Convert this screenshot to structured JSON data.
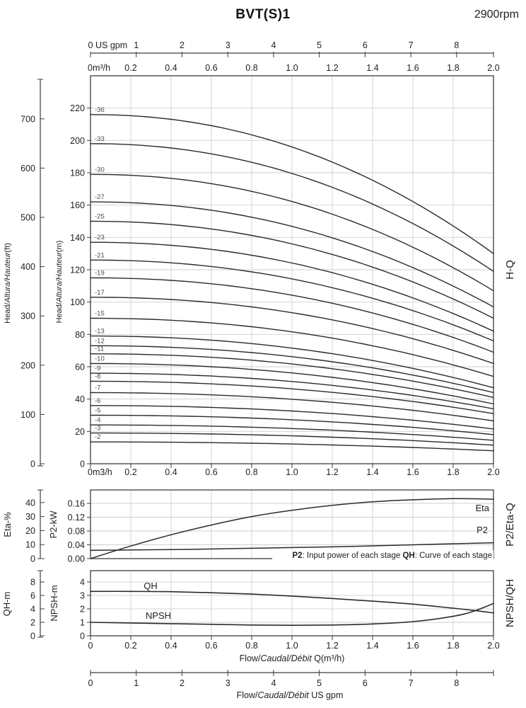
{
  "title": "BVT(S)1",
  "rpm": "2900rpm",
  "colors": {
    "curve": "#2b2b2b",
    "grid": "#cfcfcf",
    "axis": "#3d3d3d",
    "text": "#1f1f1f",
    "stage_label": "#4a4a4a"
  },
  "right_labels": {
    "hq": "H-Q",
    "p2eta": "P2/Eta-Q",
    "npshqh": "NPSH/QH"
  },
  "axis_labels": {
    "head_ft": {
      "pre": "Head/",
      "italic": "Altura/Hauteur",
      "post": "(ft)"
    },
    "head_m": {
      "pre": "Head/",
      "italic": "Altura/Hauteur",
      "post": "(m)"
    },
    "eta": "Eta-%",
    "p2": "P2-kW",
    "qh": "QH-m",
    "npsh": "NPSH-m",
    "flow_m3h": {
      "pre": "Flow/",
      "italic": "Caudal/Débit",
      "post": " Q(m³/h)"
    },
    "flow_gpm": {
      "pre": "Flow/",
      "italic": "Caudal/Débit",
      "post": "  US gpm"
    },
    "top_gpm_zero": "0",
    "top_gpm_unit": "US gpm",
    "top_m3h_zero": "0m³/h",
    "bottom_m3h_zero": "0m3/h",
    "bottom_panel_zero": "0"
  },
  "annotation": {
    "b1": "P2",
    "t1": ": Input power of each stage ",
    "b2": "QH",
    "t2": ": Curve of each stage"
  },
  "chart_data": [
    {
      "id": "head_flow",
      "type": "line",
      "title": "H-Q",
      "xlabel": "Flow Q (m³/h)",
      "ylabel": "Head (m)",
      "xlim_m3h": [
        0,
        2.0
      ],
      "ylim_m": [
        0,
        240
      ],
      "ylim_ft_ticks": [
        0,
        100,
        200,
        300,
        400,
        500,
        600,
        700
      ],
      "y_m_ticks": [
        0,
        20,
        40,
        60,
        80,
        100,
        120,
        140,
        160,
        180,
        200,
        220
      ],
      "x_m3h_tick_labels": [
        "0.2",
        "0.4",
        "0.6",
        "0.8",
        "1.0",
        "1.2",
        "1.4",
        "1.6",
        "1.8",
        "2.0"
      ],
      "x_gpm_ticks": [
        0,
        1,
        2,
        3,
        4,
        5,
        6,
        7,
        8
      ],
      "gpm_per_m3h": 4.40287,
      "grid": true,
      "curve_model": "H(Q) = h0_m - (h0_m - h_end_m) * (Q/2.0)^2.1",
      "series": [
        {
          "label": "-36",
          "stages": 36,
          "h0_m": 216,
          "h_end_m": 130
        },
        {
          "label": "-33",
          "stages": 33,
          "h0_m": 198,
          "h_end_m": 119
        },
        {
          "label": "-30",
          "stages": 30,
          "h0_m": 179,
          "h_end_m": 107
        },
        {
          "label": "-27",
          "stages": 27,
          "h0_m": 162,
          "h_end_m": 97
        },
        {
          "label": "-25",
          "stages": 25,
          "h0_m": 150,
          "h_end_m": 90
        },
        {
          "label": "-23",
          "stages": 23,
          "h0_m": 137,
          "h_end_m": 82
        },
        {
          "label": "-21",
          "stages": 21,
          "h0_m": 126,
          "h_end_m": 76
        },
        {
          "label": "-19",
          "stages": 19,
          "h0_m": 115,
          "h_end_m": 69
        },
        {
          "label": "-17",
          "stages": 17,
          "h0_m": 103,
          "h_end_m": 62
        },
        {
          "label": "-15",
          "stages": 15,
          "h0_m": 90,
          "h_end_m": 54
        },
        {
          "label": "-13",
          "stages": 13,
          "h0_m": 79,
          "h_end_m": 47
        },
        {
          "label": "-12",
          "stages": 12,
          "h0_m": 73,
          "h_end_m": 44
        },
        {
          "label": "-11",
          "stages": 11,
          "h0_m": 68,
          "h_end_m": 41
        },
        {
          "label": "-10",
          "stages": 10,
          "h0_m": 62,
          "h_end_m": 37
        },
        {
          "label": "-9",
          "stages": 9,
          "h0_m": 56,
          "h_end_m": 34
        },
        {
          "label": "-8",
          "stages": 8,
          "h0_m": 51,
          "h_end_m": 31
        },
        {
          "label": "-7",
          "stages": 7,
          "h0_m": 44,
          "h_end_m": 26.5
        },
        {
          "label": "-6",
          "stages": 6,
          "h0_m": 36,
          "h_end_m": 21.5
        },
        {
          "label": "-5",
          "stages": 5,
          "h0_m": 30,
          "h_end_m": 18
        },
        {
          "label": "-4",
          "stages": 4,
          "h0_m": 24,
          "h_end_m": 14.5
        },
        {
          "label": "-3",
          "stages": 3,
          "h0_m": 19,
          "h_end_m": 11.5
        },
        {
          "label": "-2",
          "stages": 2,
          "h0_m": 13.5,
          "h_end_m": 8
        }
      ]
    },
    {
      "id": "p2_eta",
      "type": "line",
      "title": "P2/Eta-Q",
      "x_m3h": [
        0,
        0.2,
        0.4,
        0.6,
        0.8,
        1.0,
        1.2,
        1.4,
        1.6,
        1.8,
        2.0
      ],
      "eta_pct": [
        0,
        9,
        17,
        24,
        30,
        34.5,
        38,
        40.5,
        42,
        42.8,
        42.4
      ],
      "p2_kw": [
        0.024,
        0.025,
        0.026,
        0.028,
        0.03,
        0.032,
        0.034,
        0.037,
        0.04,
        0.043,
        0.046
      ],
      "eta_ticks": [
        "0",
        "10",
        "20",
        "30",
        "40"
      ],
      "p2_ticks": [
        "0.00",
        "0.04",
        "0.08",
        "0.12",
        "0.16"
      ],
      "eta_axis_max": 49,
      "p2_axis_max": 0.199,
      "grid": true,
      "eta_curve_label": "Eta",
      "p2_curve_label": "P2"
    },
    {
      "id": "npsh_qh",
      "type": "line",
      "title": "NPSH/QH",
      "x_m3h": [
        0,
        0.2,
        0.4,
        0.6,
        0.8,
        1.0,
        1.2,
        1.4,
        1.6,
        1.8,
        1.9,
        2.0
      ],
      "qh_m": [
        6.6,
        6.6,
        6.55,
        6.4,
        6.2,
        5.9,
        5.55,
        5.15,
        4.7,
        4.1,
        3.78,
        3.4
      ],
      "npsh_m": [
        1.0,
        0.95,
        0.9,
        0.85,
        0.8,
        0.78,
        0.8,
        0.88,
        1.05,
        1.45,
        1.82,
        2.4
      ],
      "qh_ticks": [
        "0",
        "2",
        "4",
        "6",
        "8"
      ],
      "npsh_ticks": [
        "0",
        "1",
        "2",
        "3",
        "4"
      ],
      "qh_axis_range": [
        0,
        8
      ],
      "npsh_axis_range": [
        0,
        4
      ],
      "x_tick_labels": [
        "0.2",
        "0.4",
        "0.6",
        "0.8",
        "1.0",
        "1.2",
        "1.4",
        "1.6",
        "1.8",
        "2.0"
      ],
      "x_gpm_ticks": [
        0,
        1,
        2,
        3,
        4,
        5,
        6,
        7,
        8
      ],
      "grid": true,
      "qh_curve_label": "QH",
      "npsh_curve_label": "NPSH"
    }
  ]
}
